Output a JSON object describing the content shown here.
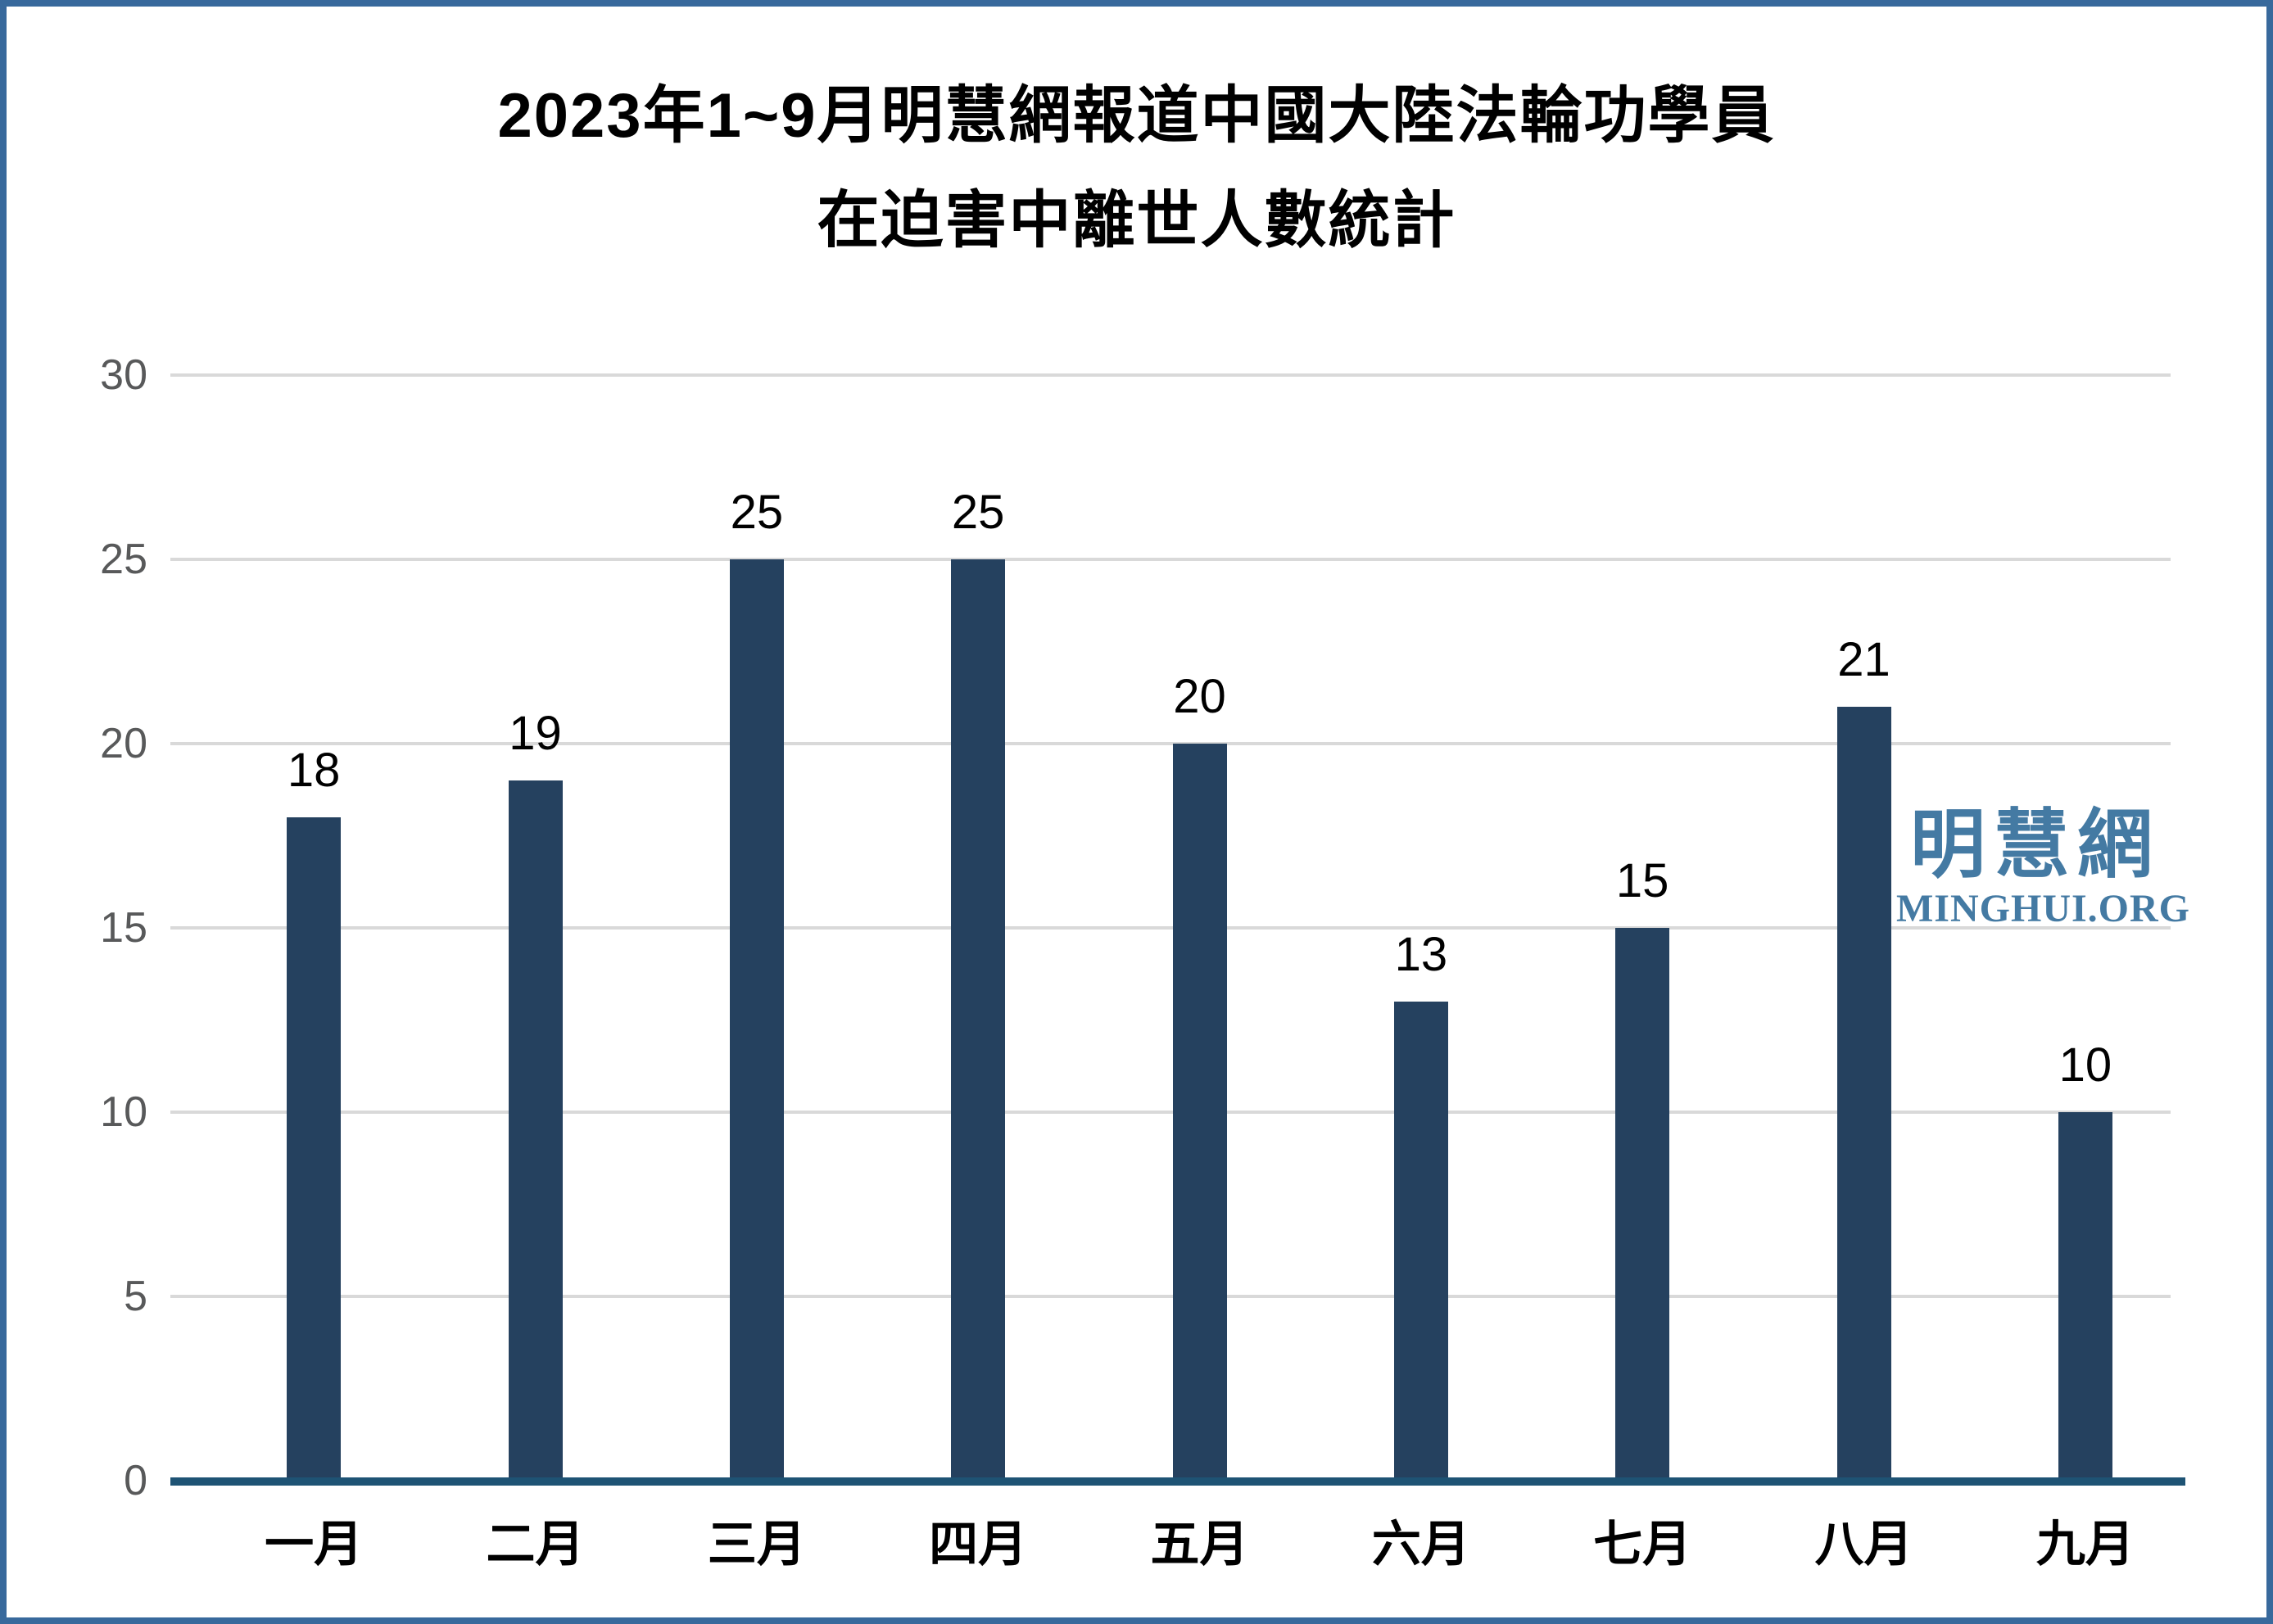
{
  "page": {
    "border_color": "#38699c",
    "background": "#ffffff"
  },
  "title": {
    "line1": "2023年1~9月明慧網報道中國大陸法輪功學員",
    "line2": "在迫害中離世人數統計"
  },
  "watermark": {
    "cjk": "明慧網",
    "latin": "MINGHUI.ORG",
    "color": "#447aa3"
  },
  "chart_data": {
    "type": "bar",
    "title": "2023年1~9月明慧網報道中國大陸法輪功學員在迫害中離世人數統計",
    "categories": [
      "一月",
      "二月",
      "三月",
      "四月",
      "五月",
      "六月",
      "七月",
      "八月",
      "九月"
    ],
    "values": [
      18,
      19,
      25,
      25,
      20,
      13,
      15,
      21,
      10
    ],
    "xlabel": "",
    "ylabel": "",
    "ylim": [
      0,
      30
    ],
    "yticks": [
      0,
      5,
      10,
      15,
      20,
      25,
      30
    ],
    "grid": true,
    "legend": false,
    "value_labels": true,
    "bar_color": "#25415f",
    "axis_color": "#1e5374",
    "gridline_color": "#d9d9d9",
    "tick_label_color": "#58595a"
  }
}
